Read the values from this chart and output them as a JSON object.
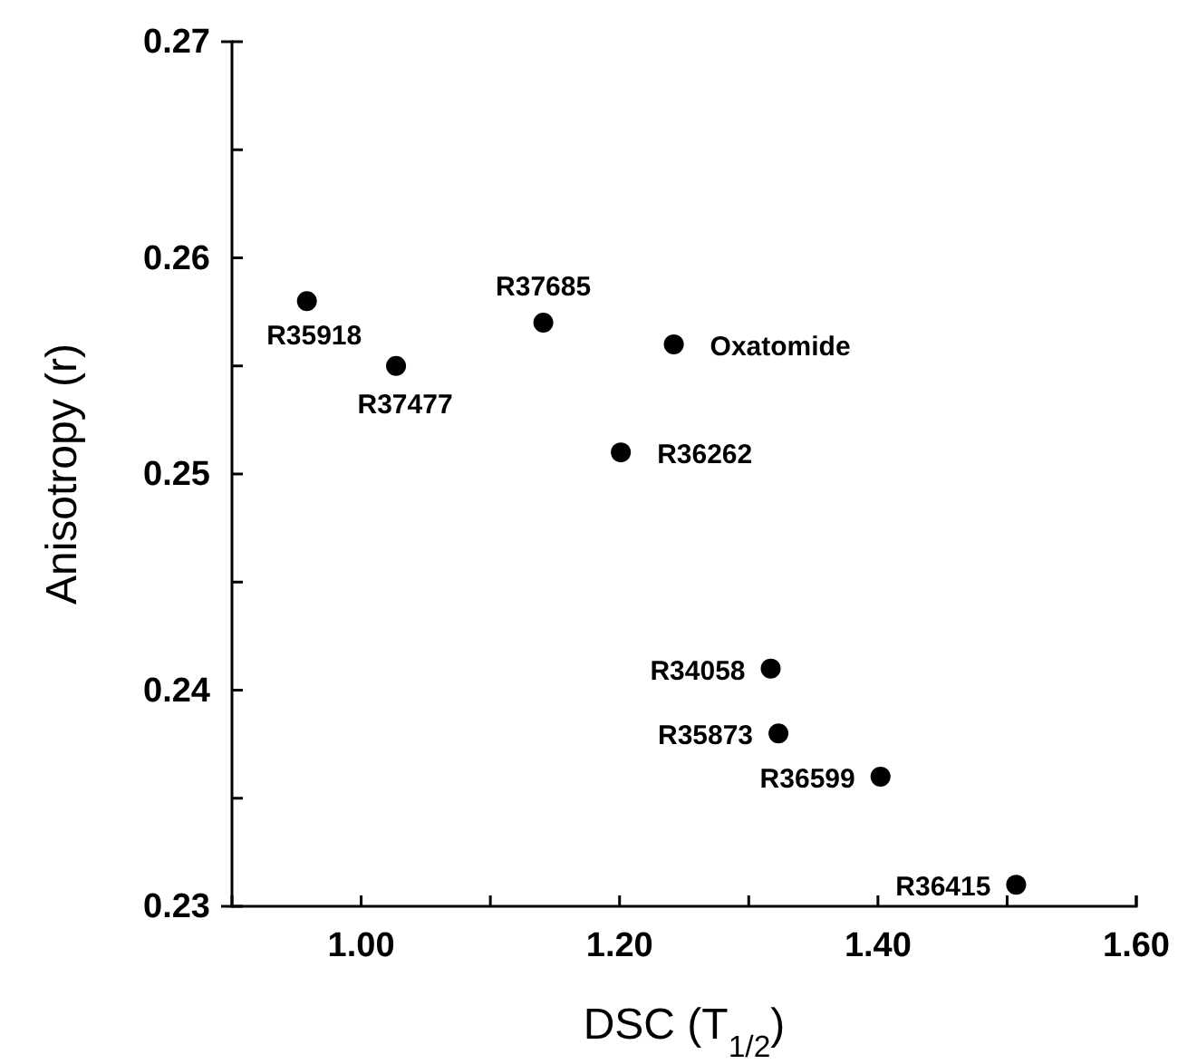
{
  "chart_data": {
    "type": "scatter",
    "xlabel": "DSC (T$_{1/2}$)",
    "ylabel": "Anisotropy (r)",
    "x": [
      0.958,
      1.027,
      1.141,
      1.242,
      1.201,
      1.317,
      1.323,
      1.402,
      1.507
    ],
    "values": [
      0.258,
      0.255,
      0.257,
      0.256,
      0.251,
      0.241,
      0.238,
      0.236,
      0.231
    ],
    "color": "#000000",
    "marker": "circle",
    "grid": false,
    "xlim": [
      0.9,
      1.6
    ],
    "xticks": [
      {
        "value": 1.0,
        "label": "1.00"
      },
      {
        "value": 1.1,
        "label": null
      },
      {
        "value": 1.2,
        "label": "1.20"
      },
      {
        "value": 1.3,
        "label": null
      },
      {
        "value": 1.4,
        "label": "1.40"
      },
      {
        "value": 1.5,
        "label": null
      },
      {
        "value": 1.6,
        "label": "1.60"
      }
    ],
    "ylim": [
      0.23,
      0.27
    ],
    "yticks": [
      {
        "value": 0.23,
        "label": "0.23"
      },
      {
        "value": 0.235,
        "label": null
      },
      {
        "value": 0.24,
        "label": "0.24"
      },
      {
        "value": 0.245,
        "label": null
      },
      {
        "value": 0.25,
        "label": "0.25"
      },
      {
        "value": 0.255,
        "label": null
      },
      {
        "value": 0.26,
        "label": "0.26"
      },
      {
        "value": 0.265,
        "label": null
      },
      {
        "value": 0.27,
        "label": "0.27"
      }
    ],
    "annotations": [
      {
        "text": "R35918",
        "x": 0.958,
        "y": 0.258
      },
      {
        "text": "R37477",
        "x": 1.027,
        "y": 0.255
      },
      {
        "text": "R37685",
        "x": 1.141,
        "y": 0.257
      },
      {
        "text": "Oxatomide",
        "x": 1.242,
        "y": 0.256
      },
      {
        "text": "R36262",
        "x": 1.201,
        "y": 0.251
      },
      {
        "text": "R34058",
        "x": 1.317,
        "y": 0.241
      },
      {
        "text": "R35873",
        "x": 1.323,
        "y": 0.238
      },
      {
        "text": "R36599",
        "x": 1.402,
        "y": 0.236
      },
      {
        "text": "R36415",
        "x": 1.507,
        "y": 0.231
      }
    ]
  }
}
